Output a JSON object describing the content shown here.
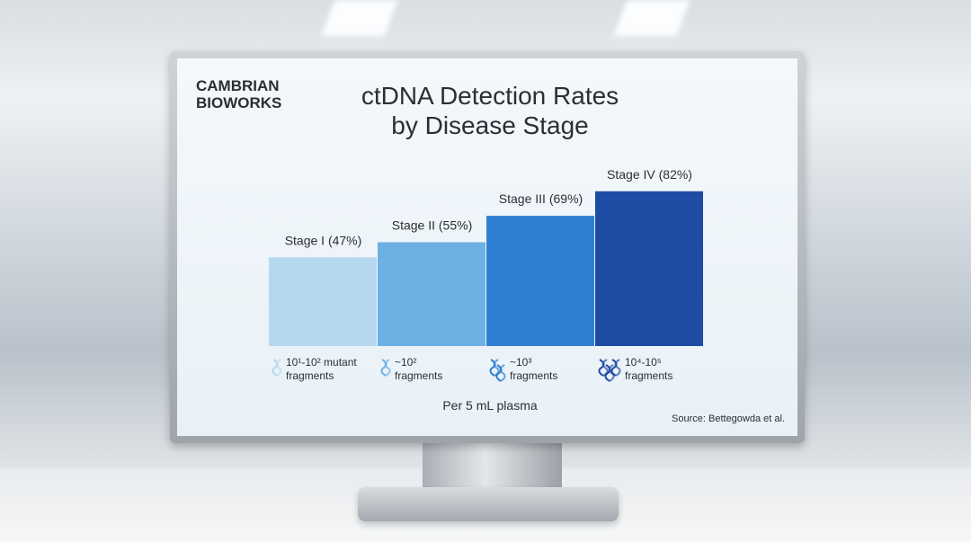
{
  "brand": "CAMBRIAN BIOWORKS",
  "chart_data": {
    "type": "bar",
    "title": "ctDNA Detection Rates by Disease Stage",
    "categories": [
      "10¹-10² mutant fragments",
      "~10² fragments",
      "~10³ fragments",
      "10⁴-10⁵ fragments"
    ],
    "values": [
      47,
      55,
      69,
      82
    ],
    "value_labels": [
      "Stage I (47%)",
      "Stage II (55%)",
      "Stage III (69%)",
      "Stage IV (82%)"
    ],
    "colors": [
      "#b5d8f0",
      "#6db1e4",
      "#2f80d2",
      "#1e4ca4"
    ],
    "x_label": "Per 5 mL plasma",
    "source": "Source: Bettegowda et al."
  }
}
